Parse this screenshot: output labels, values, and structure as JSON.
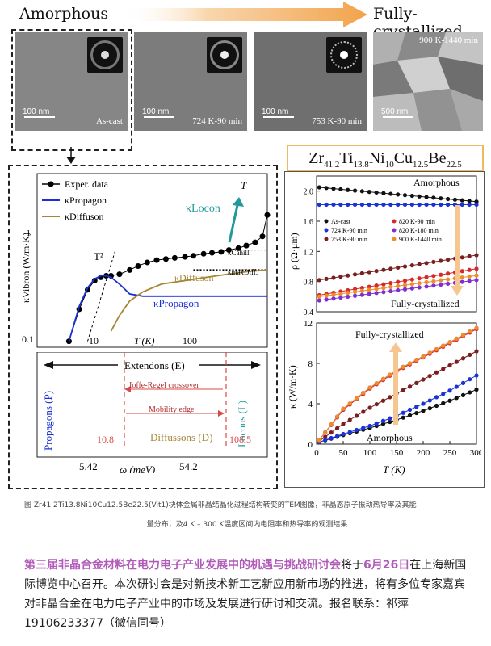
{
  "header": {
    "left_label": "Amorphous",
    "right_label": "Fully-crystallized",
    "arrow_color": "#f2a34b"
  },
  "tem_panels": [
    {
      "condition": "As-cast",
      "scale": "100 nm",
      "top_label": ""
    },
    {
      "condition": "724 K-90 min",
      "scale": "100 nm",
      "top_label": ""
    },
    {
      "condition": "753 K-90 min",
      "scale": "100 nm",
      "top_label": ""
    },
    {
      "condition": "",
      "scale": "500 nm",
      "top_label": "900 K-1440 min"
    }
  ],
  "formula": {
    "parts": [
      {
        "el": "Zr",
        "sub": "41.2"
      },
      {
        "el": "Ti",
        "sub": "13.8"
      },
      {
        "el": "Ni",
        "sub": "10"
      },
      {
        "el": "Cu",
        "sub": "12.5"
      },
      {
        "el": "Be",
        "sub": "22.5"
      }
    ],
    "border_color": "#f0b860"
  },
  "left_chart": {
    "legend": [
      "Exper. data",
      "κPropagon",
      "κDiffuson"
    ],
    "ylabel": "κVibron (W/m·K)",
    "xlabel": "T (K)",
    "ytick_labels": [
      "0.1",
      "1"
    ],
    "xtick_labels": [
      "10",
      "100"
    ],
    "annotations": {
      "T2": "T²",
      "T": "T",
      "locon": "κLocon",
      "cahill": "κCahill.",
      "diffmax": "κmaxDiff.",
      "diffuson": "κDiffuson",
      "propagon": "κPropagon"
    }
  },
  "left_lower": {
    "extendons": "Extendons (E)",
    "ioffe": "Ioffe-Regel crossover",
    "mobility": "Mobility edge",
    "diffusons": "Diffussons (D)",
    "propagons": "Propagons (P)",
    "locons": "Locons (L)",
    "v1": "10.8",
    "v2": "108.5",
    "tick1": "5.42",
    "tick2": "54.2",
    "xlabel": "ω (meV)"
  },
  "chart_data": [
    {
      "type": "line",
      "title": "",
      "xlabel": "T (K)",
      "ylabel": "κVibron (W/m·K)",
      "xscale": "log",
      "yscale": "log",
      "xlim": [
        2,
        300
      ],
      "ylim": [
        0.08,
        2.5
      ],
      "series": [
        {
          "name": "Exper. data",
          "color": "#000000",
          "x": [
            4,
            5,
            6,
            7,
            8,
            9,
            10,
            12,
            15,
            18,
            22,
            27,
            33,
            40,
            50,
            60,
            75,
            90,
            110,
            130,
            160,
            190,
            230,
            270,
            300
          ],
          "y": [
            0.09,
            0.17,
            0.25,
            0.3,
            0.32,
            0.33,
            0.33,
            0.34,
            0.37,
            0.4,
            0.43,
            0.45,
            0.46,
            0.47,
            0.48,
            0.49,
            0.51,
            0.52,
            0.53,
            0.55,
            0.57,
            0.6,
            0.64,
            0.72,
            1.1
          ]
        },
        {
          "name": "κPropagon",
          "color": "#1a2fd6",
          "x": [
            4,
            5,
            6,
            7,
            8,
            9,
            10,
            12,
            15,
            20,
            30,
            50,
            100,
            200,
            300
          ],
          "y": [
            0.09,
            0.18,
            0.26,
            0.31,
            0.33,
            0.33,
            0.32,
            0.28,
            0.23,
            0.22,
            0.22,
            0.22,
            0.22,
            0.22,
            0.22
          ]
        },
        {
          "name": "κDiffuson",
          "color": "#a58634",
          "x": [
            10,
            12,
            15,
            20,
            30,
            50,
            100,
            200,
            300
          ],
          "y": [
            0.11,
            0.15,
            0.2,
            0.24,
            0.28,
            0.3,
            0.33,
            0.36,
            0.37
          ]
        }
      ]
    },
    {
      "type": "line",
      "title": "",
      "xlabel": "T (K)",
      "ylabel": "ρ (Ω·μm)",
      "xlim": [
        0,
        300
      ],
      "ylim": [
        0.4,
        2.2
      ],
      "yticks": [
        0.4,
        0.8,
        1.2,
        1.6,
        2.0
      ],
      "annotations": [
        "Amorphous",
        "Fully-crystallized"
      ],
      "series": [
        {
          "name": "As-cast",
          "color": "#111111",
          "x": [
            5,
            300
          ],
          "y": [
            2.05,
            1.86
          ]
        },
        {
          "name": "724 K-90 min",
          "color": "#1b33d6",
          "x": [
            5,
            300
          ],
          "y": [
            1.82,
            1.82
          ]
        },
        {
          "name": "753 K-90 min",
          "color": "#7a1f20",
          "x": [
            5,
            300
          ],
          "y": [
            0.82,
            1.15
          ]
        },
        {
          "name": "820 K-90 min",
          "color": "#d62a2a",
          "x": [
            5,
            300
          ],
          "y": [
            0.62,
            0.97
          ]
        },
        {
          "name": "820 K-180 min",
          "color": "#7f2fd1",
          "x": [
            5,
            300
          ],
          "y": [
            0.55,
            0.82
          ]
        },
        {
          "name": "900 K-1440 min",
          "color": "#f08b2a",
          "x": [
            5,
            300
          ],
          "y": [
            0.6,
            0.88
          ]
        }
      ]
    },
    {
      "type": "line",
      "title": "",
      "xlabel": "T (K)",
      "ylabel": "κ (W/m·K)",
      "xlim": [
        0,
        300
      ],
      "ylim": [
        0,
        12
      ],
      "xticks": [
        0,
        50,
        100,
        150,
        200,
        250,
        300
      ],
      "yticks": [
        0,
        4,
        8,
        12
      ],
      "annotations": [
        "Fully-crystallized",
        "Amorphous"
      ],
      "series": [
        {
          "name": "As-cast",
          "color": "#111111",
          "x": [
            5,
            50,
            100,
            150,
            200,
            250,
            300
          ],
          "y": [
            0.2,
            0.9,
            1.6,
            2.4,
            3.3,
            4.3,
            5.4
          ]
        },
        {
          "name": "724 K-90 min",
          "color": "#1b33d6",
          "x": [
            5,
            50,
            100,
            150,
            200,
            250,
            300
          ],
          "y": [
            0.2,
            1.0,
            1.8,
            2.8,
            4.0,
            5.3,
            6.8
          ]
        },
        {
          "name": "753 K-90 min",
          "color": "#7a1f20",
          "x": [
            5,
            50,
            100,
            150,
            200,
            250,
            300
          ],
          "y": [
            0.3,
            2.0,
            3.6,
            5.0,
            6.4,
            7.8,
            9.2
          ]
        },
        {
          "name": "820 K-90 min",
          "color": "#d62a2a",
          "x": [
            5,
            50,
            100,
            150,
            200,
            250,
            300
          ],
          "y": [
            0.4,
            3.4,
            5.5,
            7.2,
            8.6,
            10.0,
            11.4
          ]
        },
        {
          "name": "820 K-180 min",
          "color": "#7f2fd1",
          "x": [
            5,
            50,
            100,
            150,
            200,
            250,
            300
          ],
          "y": [
            0.4,
            3.5,
            5.6,
            7.3,
            8.7,
            10.1,
            11.5
          ]
        },
        {
          "name": "900 K-1440 min",
          "color": "#f08b2a",
          "x": [
            5,
            50,
            100,
            150,
            200,
            250,
            300
          ],
          "y": [
            0.4,
            3.5,
            5.6,
            7.3,
            8.7,
            10.1,
            11.5
          ]
        }
      ]
    }
  ],
  "caption": {
    "line1": "图 Zr41.2Ti13.8Ni10Cu12.5Be22.5(Vit1)块体金属非晶结晶化过程结构转变的TEM图像，非晶态原子振动热导率及其能",
    "line2": "量分布，及4 K – 300 K温度区间内电阻率和热导率的观测结果"
  },
  "promo": {
    "highlight1": "第三届非晶合金材料在电力电子产业发展中的机遇与挑战研讨会",
    "text1": "将于",
    "highlight2": "6月26日",
    "text2": "在上海新国际博览中心召开。本次研讨会是对新技术新工艺新应用新市场的推进，将有多位专家嘉宾对非晶合金在电力电子产业中的市场及发展进行研讨和交流。报名联系：祁萍 19106233377（微信同号）"
  }
}
